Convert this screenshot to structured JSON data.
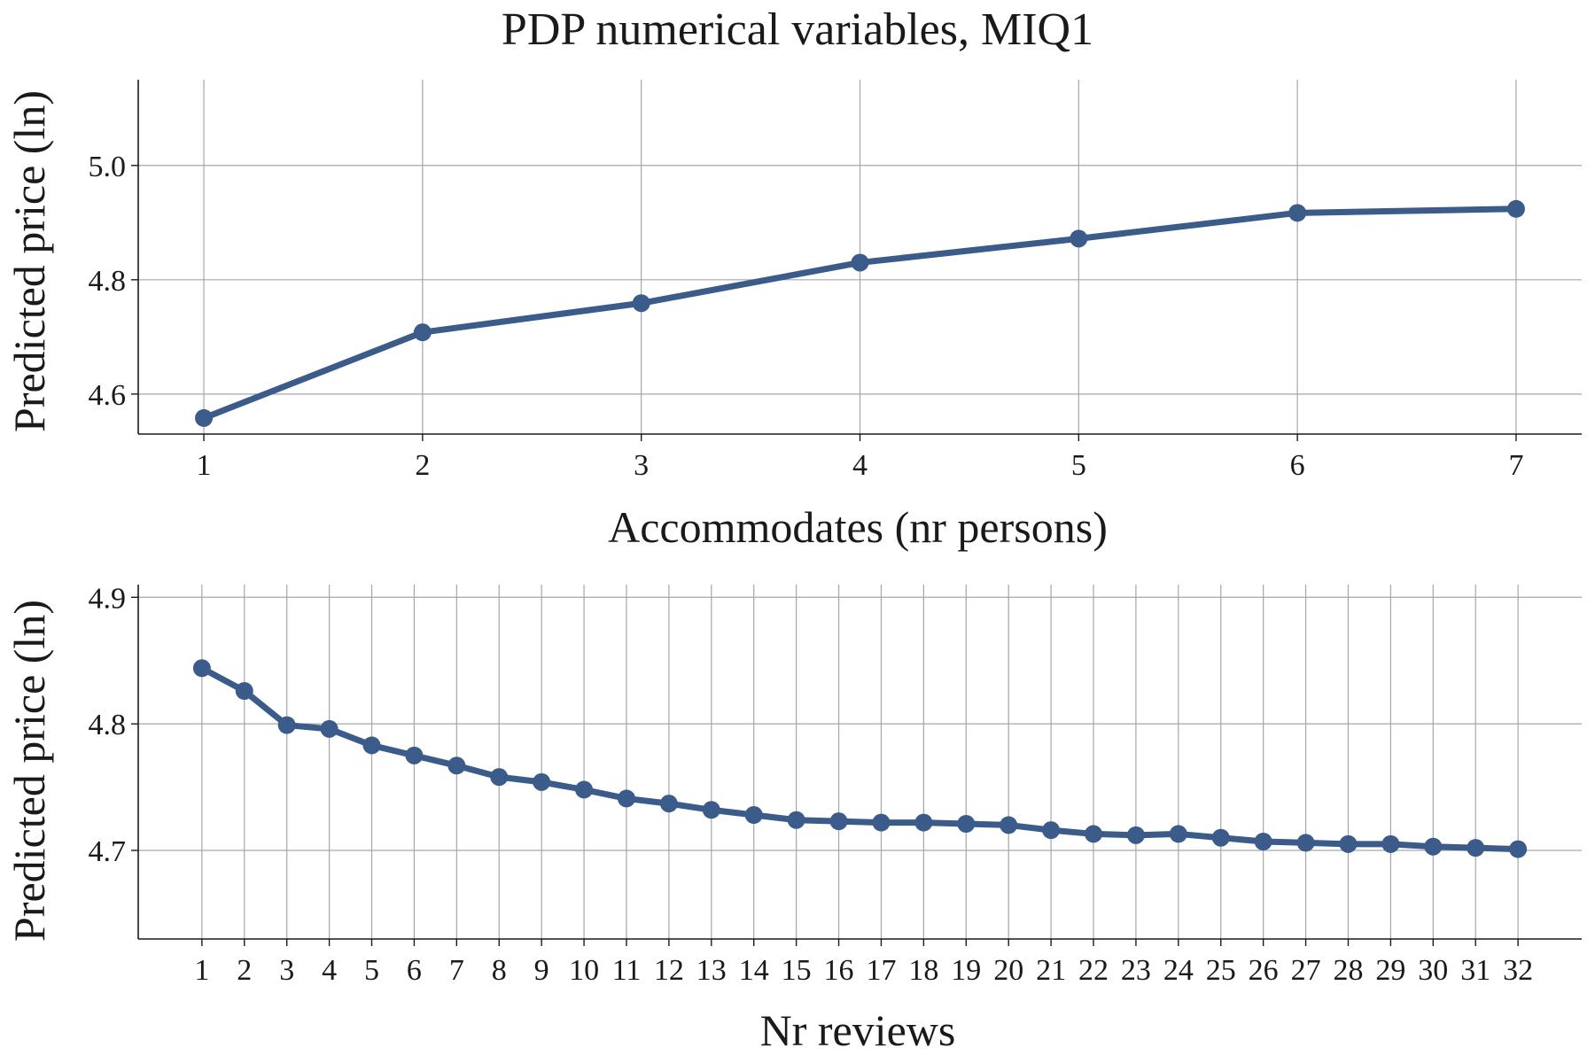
{
  "title": "PDP numerical variables, MIQ1",
  "colors": {
    "series": "#3b5b8a",
    "grid": "#a6a6a6",
    "axis": "#1a1a1a"
  },
  "chart_data": [
    {
      "type": "line",
      "xlabel": "Accommodates (nr persons)",
      "ylabel": "Predicted price (ln)",
      "x": [
        1,
        2,
        3,
        4,
        5,
        6,
        7
      ],
      "values": [
        4.558,
        4.708,
        4.759,
        4.83,
        4.872,
        4.917,
        4.924
      ],
      "xticks": [
        "1",
        "2",
        "3",
        "4",
        "5",
        "6",
        "7"
      ],
      "yticks": [
        "4.6",
        "4.8",
        "5.0"
      ],
      "ytick_values": [
        4.6,
        4.8,
        5.0
      ],
      "xlim": [
        0.7,
        7.3
      ],
      "ylim": [
        4.53,
        5.15
      ],
      "grid": true,
      "markers": true
    },
    {
      "type": "line",
      "xlabel": "Nr reviews",
      "ylabel": "Predicted price (ln)",
      "x": [
        1,
        2,
        3,
        4,
        5,
        6,
        7,
        8,
        9,
        10,
        11,
        12,
        13,
        14,
        15,
        16,
        17,
        18,
        19,
        20,
        21,
        22,
        23,
        24,
        25,
        26,
        27,
        28,
        29,
        30,
        31,
        32
      ],
      "values": [
        4.844,
        4.826,
        4.799,
        4.796,
        4.783,
        4.775,
        4.767,
        4.758,
        4.754,
        4.748,
        4.741,
        4.737,
        4.732,
        4.728,
        4.724,
        4.723,
        4.722,
        4.722,
        4.721,
        4.72,
        4.716,
        4.713,
        4.712,
        4.713,
        4.71,
        4.707,
        4.706,
        4.705,
        4.705,
        4.703,
        4.702,
        4.701
      ],
      "xticks": [
        "1",
        "2",
        "3",
        "4",
        "5",
        "6",
        "7",
        "8",
        "9",
        "10",
        "11",
        "12",
        "13",
        "14",
        "15",
        "16",
        "17",
        "18",
        "19",
        "20",
        "21",
        "22",
        "23",
        "24",
        "25",
        "26",
        "27",
        "28",
        "29",
        "30",
        "31",
        "32"
      ],
      "yticks": [
        "4.7",
        "4.8",
        "4.9"
      ],
      "ytick_values": [
        4.7,
        4.8,
        4.9
      ],
      "xlim": [
        -0.5,
        33.5
      ],
      "ylim": [
        4.63,
        4.91
      ],
      "grid": true,
      "markers": true
    }
  ]
}
